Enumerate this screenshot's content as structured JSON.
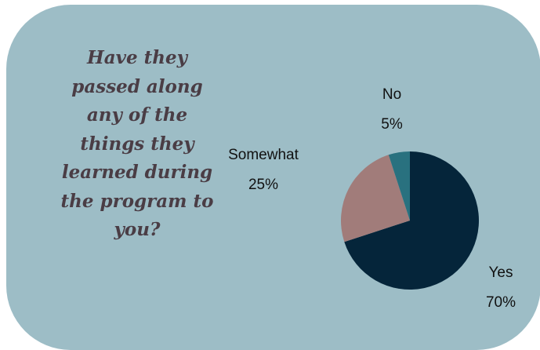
{
  "question_lines": [
    "Have they",
    "passed along",
    "any of the",
    "things they",
    "learned during",
    "the program to",
    "you?"
  ],
  "chart_data": {
    "type": "pie",
    "title": "Have they passed along any of the things they learned during the program to you?",
    "start_angle_deg": -90,
    "direction": "clockwise",
    "slices": [
      {
        "label": "Yes",
        "value": 70,
        "display": "70%",
        "color": "#05253a"
      },
      {
        "label": "Somewhat",
        "value": 25,
        "display": "25%",
        "color": "#a17c7a"
      },
      {
        "label": "No",
        "value": 5,
        "display": "5%",
        "color": "#29717f"
      }
    ]
  },
  "colors": {
    "card_background": "#9dbdc6",
    "question_text": "#4a3d45"
  }
}
